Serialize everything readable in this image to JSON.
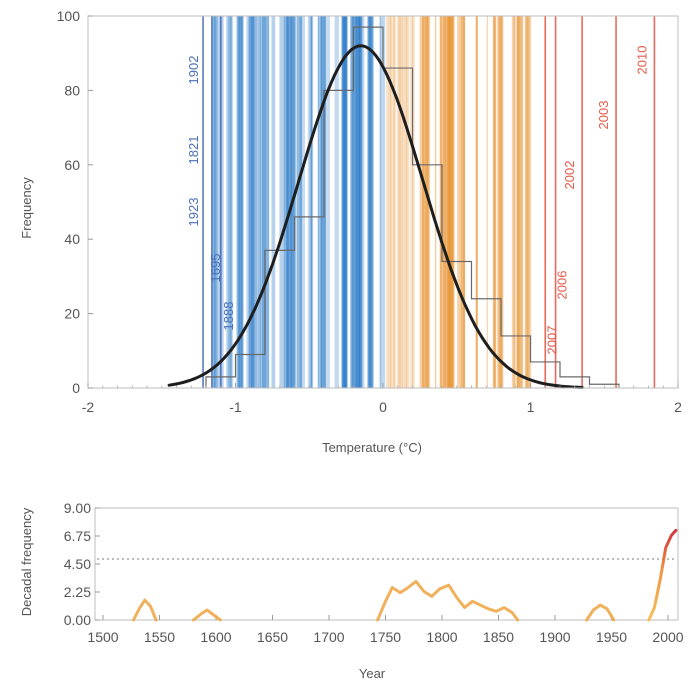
{
  "chart_data": [
    {
      "type": "histogram",
      "xlabel": "Temperature (°C)",
      "ylabel": "Frequency",
      "xlim": [
        -2,
        2
      ],
      "ylim": [
        0,
        100
      ],
      "xticks": [
        -2,
        -1,
        0,
        1,
        2
      ],
      "yticks": [
        0,
        20,
        40,
        60,
        80,
        100
      ],
      "hist_bins": [
        {
          "x0": -1.2,
          "x1": -1.0,
          "count": 3
        },
        {
          "x0": -1.0,
          "x1": -0.8,
          "count": 9
        },
        {
          "x0": -0.8,
          "x1": -0.6,
          "count": 37
        },
        {
          "x0": -0.6,
          "x1": -0.4,
          "count": 46
        },
        {
          "x0": -0.4,
          "x1": -0.2,
          "count": 80
        },
        {
          "x0": -0.2,
          "x1": 0.0,
          "count": 97
        },
        {
          "x0": 0.0,
          "x1": 0.2,
          "count": 86
        },
        {
          "x0": 0.2,
          "x1": 0.4,
          "count": 60
        },
        {
          "x0": 0.4,
          "x1": 0.6,
          "count": 34
        },
        {
          "x0": 0.6,
          "x1": 0.8,
          "count": 24
        },
        {
          "x0": 0.8,
          "x1": 1.0,
          "count": 14
        },
        {
          "x0": 1.0,
          "x1": 1.2,
          "count": 7
        },
        {
          "x0": 1.2,
          "x1": 1.4,
          "count": 3
        },
        {
          "x0": 1.4,
          "x1": 1.6,
          "count": 1
        }
      ],
      "fit_curve": {
        "type": "normal",
        "mean": -0.15,
        "sd": 0.42,
        "peak": 92,
        "x_range": [
          -1.45,
          1.35
        ]
      },
      "background_stripes": {
        "cold_color": "#2b7bc8",
        "warm_color": "#e8922e",
        "range": [
          -1.15,
          1.0
        ]
      },
      "labeled_years": [
        {
          "year": "1902",
          "temp": -1.22,
          "color": "#4a6db8"
        },
        {
          "year": "1923",
          "temp": -1.22,
          "color": "#4a6db8"
        },
        {
          "year": "1821",
          "temp": -1.22,
          "color": "#4a6db8"
        },
        {
          "year": "1695",
          "temp": -1.16,
          "color": "#4a6db8"
        },
        {
          "year": "1888",
          "temp": -1.1,
          "color": "#4a6db8"
        },
        {
          "year": "2007",
          "temp": 1.1,
          "color": "#e55a4a"
        },
        {
          "year": "2006",
          "temp": 1.17,
          "color": "#e55a4a"
        },
        {
          "year": "2002",
          "temp": 1.35,
          "color": "#e55a4a"
        },
        {
          "year": "2003",
          "temp": 1.58,
          "color": "#e55a4a"
        },
        {
          "year": "2010",
          "temp": 1.84,
          "color": "#e55a4a"
        }
      ]
    },
    {
      "type": "line",
      "xlabel": "Year",
      "ylabel": "Decadal frequency",
      "xlim": [
        1500,
        2010
      ],
      "ylim": [
        0,
        9
      ],
      "xticks": [
        "1500",
        "1550",
        "1600",
        "1650",
        "1700",
        "1750",
        "1800",
        "1850",
        "1900",
        "1950",
        "2000"
      ],
      "yticks": [
        "0.00",
        "2.25",
        "4.50",
        "6.75",
        "9.00"
      ],
      "threshold": 4.9,
      "series": [
        {
          "segments": [
            [
              [
                1527,
                0
              ],
              [
                1532,
                0.9
              ],
              [
                1537,
                1.6
              ],
              [
                1542,
                1.1
              ],
              [
                1547,
                0
              ]
            ],
            [
              [
                1580,
                0
              ],
              [
                1587,
                0.5
              ],
              [
                1592,
                0.8
              ],
              [
                1598,
                0.4
              ],
              [
                1604,
                0
              ]
            ],
            [
              [
                1743,
                0
              ],
              [
                1750,
                1.5
              ],
              [
                1756,
                2.6
              ],
              [
                1763,
                2.2
              ],
              [
                1770,
                2.6
              ],
              [
                1777,
                3.1
              ],
              [
                1784,
                2.3
              ],
              [
                1791,
                1.9
              ],
              [
                1798,
                2.5
              ],
              [
                1806,
                2.8
              ],
              [
                1813,
                1.8
              ],
              [
                1820,
                1.0
              ],
              [
                1827,
                1.5
              ],
              [
                1834,
                1.2
              ],
              [
                1841,
                0.9
              ],
              [
                1848,
                0.7
              ],
              [
                1855,
                1.0
              ],
              [
                1862,
                0.6
              ],
              [
                1867,
                0
              ]
            ],
            [
              [
                1928,
                0
              ],
              [
                1934,
                0.8
              ],
              [
                1940,
                1.2
              ],
              [
                1946,
                0.9
              ],
              [
                1952,
                0
              ]
            ],
            [
              [
                1983,
                0
              ],
              [
                1988,
                1.0
              ],
              [
                1993,
                3.2
              ],
              [
                1998,
                5.8
              ],
              [
                2003,
                6.8
              ],
              [
                2007,
                7.2
              ]
            ]
          ]
        }
      ]
    }
  ]
}
